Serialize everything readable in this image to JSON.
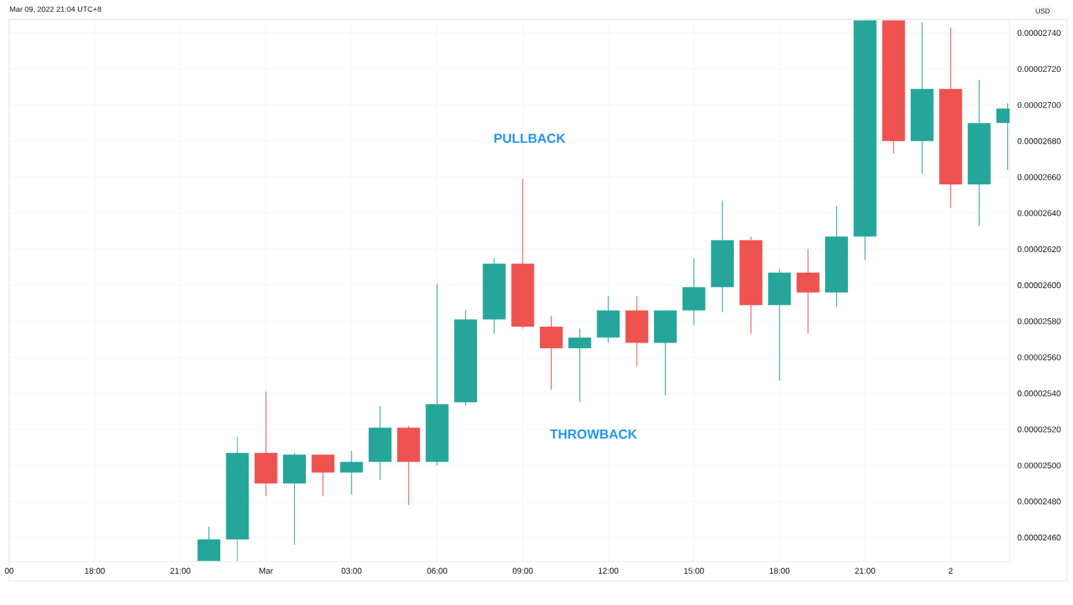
{
  "chart_data": {
    "type": "candlestick",
    "x": [
      "2022-02-28T22:00",
      "2022-02-28T23:00",
      "2022-03-01T00:00",
      "2022-03-01T01:00",
      "2022-03-01T02:00",
      "2022-03-01T03:00",
      "2022-03-01T04:00",
      "2022-03-01T05:00",
      "2022-03-01T06:00",
      "2022-03-01T07:00",
      "2022-03-01T08:00",
      "2022-03-01T09:00",
      "2022-03-01T10:00",
      "2022-03-01T11:00",
      "2022-03-01T12:00",
      "2022-03-01T13:00",
      "2022-03-01T14:00",
      "2022-03-01T15:00",
      "2022-03-01T16:00",
      "2022-03-01T17:00",
      "2022-03-01T18:00",
      "2022-03-01T19:00",
      "2022-03-01T20:00",
      "2022-03-01T21:00",
      "2022-03-01T22:00",
      "2022-03-01T23:00",
      "2022-03-02T00:00",
      "2022-03-02T01:00",
      "2022-03-02T02:00"
    ],
    "ohlc": [
      [
        2.447e-05,
        2.466e-05,
        2.447e-05,
        2.459e-05
      ],
      [
        2.459e-05,
        2.516e-05,
        2.447e-05,
        2.507e-05
      ],
      [
        2.507e-05,
        2.541e-05,
        2.483e-05,
        2.49e-05
      ],
      [
        2.49e-05,
        2.507e-05,
        2.456e-05,
        2.506e-05
      ],
      [
        2.506e-05,
        2.506e-05,
        2.483e-05,
        2.496e-05
      ],
      [
        2.496e-05,
        2.508e-05,
        2.484e-05,
        2.502e-05
      ],
      [
        2.502e-05,
        2.533e-05,
        2.492e-05,
        2.521e-05
      ],
      [
        2.521e-05,
        2.522e-05,
        2.478e-05,
        2.502e-05
      ],
      [
        2.502e-05,
        2.601e-05,
        2.5e-05,
        2.534e-05
      ],
      [
        2.535e-05,
        2.586e-05,
        2.533e-05,
        2.581e-05
      ],
      [
        2.581e-05,
        2.615e-05,
        2.573e-05,
        2.612e-05
      ],
      [
        2.612e-05,
        2.659e-05,
        2.576e-05,
        2.577e-05
      ],
      [
        2.577e-05,
        2.583e-05,
        2.542e-05,
        2.565e-05
      ],
      [
        2.565e-05,
        2.576e-05,
        2.535e-05,
        2.571e-05
      ],
      [
        2.571e-05,
        2.594e-05,
        2.568e-05,
        2.586e-05
      ],
      [
        2.586e-05,
        2.594e-05,
        2.555e-05,
        2.568e-05
      ],
      [
        2.568e-05,
        2.586e-05,
        2.539e-05,
        2.586e-05
      ],
      [
        2.586e-05,
        2.615e-05,
        2.578e-05,
        2.599e-05
      ],
      [
        2.599e-05,
        2.647e-05,
        2.585e-05,
        2.625e-05
      ],
      [
        2.625e-05,
        2.627e-05,
        2.573e-05,
        2.589e-05
      ],
      [
        2.589e-05,
        2.609e-05,
        2.547e-05,
        2.607e-05
      ],
      [
        2.607e-05,
        2.62e-05,
        2.573e-05,
        2.596e-05
      ],
      [
        2.596e-05,
        2.644e-05,
        2.588e-05,
        2.627e-05
      ],
      [
        2.627e-05,
        2.747e-05,
        2.614e-05,
        2.747e-05
      ],
      [
        2.747e-05,
        2.747e-05,
        2.673e-05,
        2.68e-05
      ],
      [
        2.68e-05,
        2.746e-05,
        2.662e-05,
        2.709e-05
      ],
      [
        2.709e-05,
        2.743e-05,
        2.643e-05,
        2.656e-05
      ],
      [
        2.656e-05,
        2.714e-05,
        2.633e-05,
        2.69e-05
      ],
      [
        2.69e-05,
        2.701e-05,
        2.664e-05,
        2.698e-05
      ]
    ],
    "colors": [
      "#26a69a",
      "#26a69a",
      "#ef5350",
      "#26a69a",
      "#ef5350",
      "#26a69a",
      "#26a69a",
      "#ef5350",
      "#26a69a",
      "#26a69a",
      "#26a69a",
      "#ef5350",
      "#ef5350",
      "#26a69a",
      "#26a69a",
      "#ef5350",
      "#26a69a",
      "#26a69a",
      "#26a69a",
      "#ef5350",
      "#26a69a",
      "#ef5350",
      "#26a69a",
      "#26a69a",
      "#ef5350",
      "#26a69a",
      "#ef5350",
      "#26a69a",
      "#26a69a"
    ],
    "xlim": [
      "2022-02-28T15:00",
      "2022-03-02T02:04"
    ],
    "xticks": [
      {
        "value": "2022-02-28T15:00",
        "label": "00"
      },
      {
        "value": "2022-02-28T18:00",
        "label": "18:00"
      },
      {
        "value": "2022-02-28T21:00",
        "label": "21:00"
      },
      {
        "value": "2022-03-01T00:00",
        "label": "Mar"
      },
      {
        "value": "2022-03-01T03:00",
        "label": "03:00"
      },
      {
        "value": "2022-03-01T06:00",
        "label": "06:00"
      },
      {
        "value": "2022-03-01T09:00",
        "label": "09:00"
      },
      {
        "value": "2022-03-01T12:00",
        "label": "12:00"
      },
      {
        "value": "2022-03-01T15:00",
        "label": "15:00"
      },
      {
        "value": "2022-03-01T18:00",
        "label": "18:00"
      },
      {
        "value": "2022-03-01T21:00",
        "label": "21:00"
      },
      {
        "value": "2022-03-02T00:00",
        "label": "2"
      }
    ],
    "ylim": [
      2.4466e-05,
      2.7476e-05
    ],
    "yticks": [
      {
        "value": 2.46e-05,
        "label": "0.00002460"
      },
      {
        "value": 2.48e-05,
        "label": "0.00002480"
      },
      {
        "value": 2.5e-05,
        "label": "0.00002500"
      },
      {
        "value": 2.52e-05,
        "label": "0.00002520"
      },
      {
        "value": 2.54e-05,
        "label": "0.00002540"
      },
      {
        "value": 2.56e-05,
        "label": "0.00002560"
      },
      {
        "value": 2.58e-05,
        "label": "0.00002580"
      },
      {
        "value": 2.6e-05,
        "label": "0.00002600"
      },
      {
        "value": 2.62e-05,
        "label": "0.00002620"
      },
      {
        "value": 2.64e-05,
        "label": "0.00002640"
      },
      {
        "value": 2.66e-05,
        "label": "0.00002660"
      },
      {
        "value": 2.68e-05,
        "label": "0.00002680"
      },
      {
        "value": 2.7e-05,
        "label": "0.00002700"
      },
      {
        "value": 2.72e-05,
        "label": "0.00002720"
      },
      {
        "value": 2.74e-05,
        "label": "0.00002740"
      }
    ],
    "grid": true,
    "annotations": [
      "Mar 09, 2022 21:04 UTC+8",
      "USD",
      {
        "text": "PULLBACK",
        "x": "2022-03-01T09:00",
        "y": 2.659e-05
      },
      {
        "text": "THROWBACK",
        "x": "2022-03-01T11:00",
        "y": 2.535e-05
      }
    ]
  }
}
